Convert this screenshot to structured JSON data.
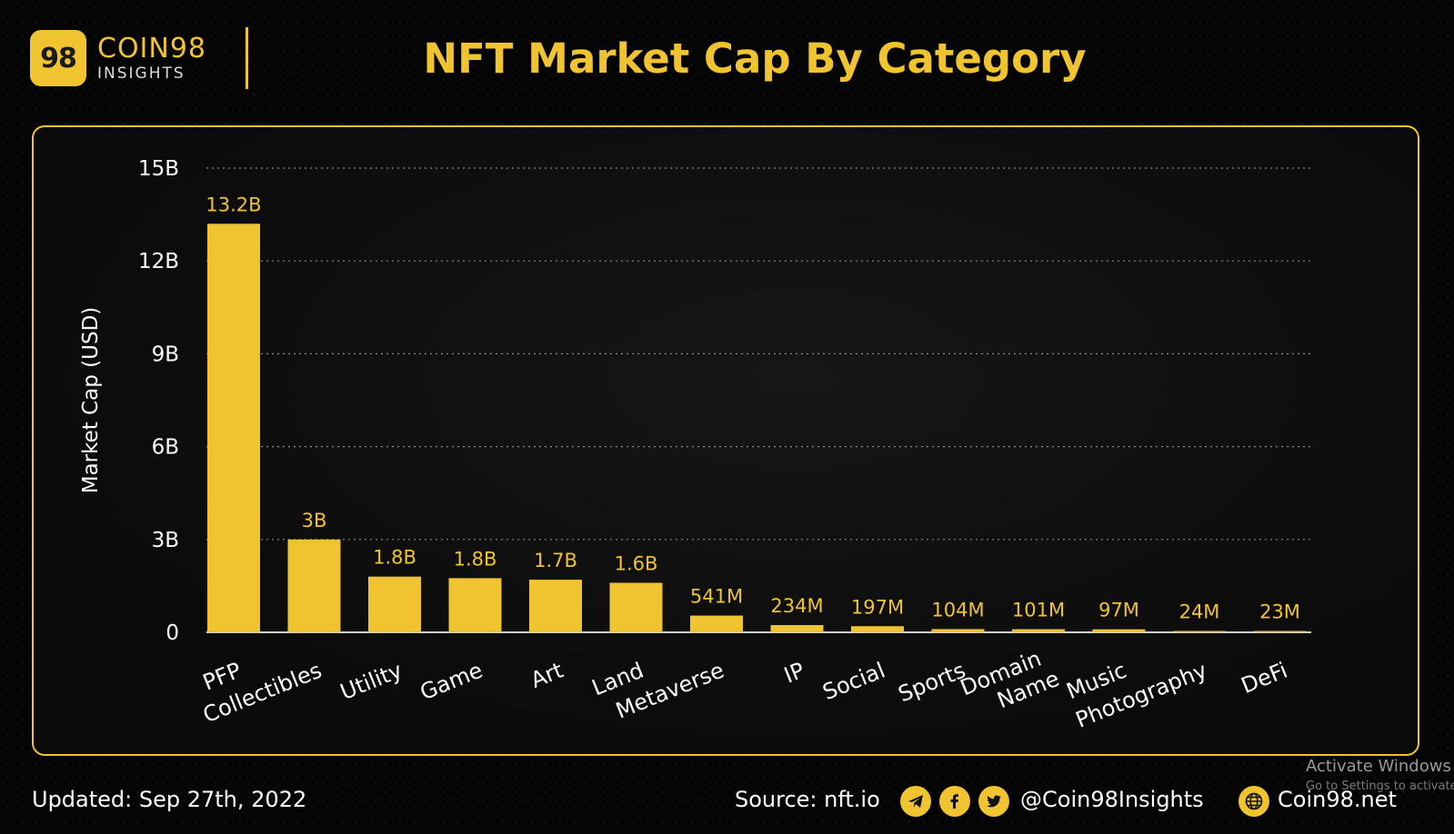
{
  "brand": {
    "badge": "98",
    "name": "COIN98",
    "sub": "INSIGHTS"
  },
  "title": "NFT Market Cap By Category",
  "footer": {
    "updated": "Updated: Sep 27th, 2022",
    "source": "Source: nft.io",
    "handle": "@Coin98Insights",
    "site": "Coin98.net",
    "icons": [
      "telegram-icon",
      "facebook-icon",
      "twitter-icon",
      "globe-icon"
    ]
  },
  "watermark": {
    "line1": "Activate Windows",
    "line2": "Go to Settings to activate"
  },
  "colors": {
    "accent": "#f0c330",
    "background": "#050505"
  },
  "chart_data": {
    "type": "bar",
    "ylabel": "Market Cap (USD)",
    "ylim": [
      0,
      15
    ],
    "yticks": [
      {
        "value": 0,
        "label": "0"
      },
      {
        "value": 3,
        "label": "3B"
      },
      {
        "value": 6,
        "label": "6B"
      },
      {
        "value": 9,
        "label": "9B"
      },
      {
        "value": 12,
        "label": "12B"
      },
      {
        "value": 15,
        "label": "15B"
      }
    ],
    "grid": true,
    "categories": [
      "PFP",
      "Collectibles",
      "Utility",
      "Game",
      "Art",
      "Land",
      "Metaverse",
      "IP",
      "Social",
      "Sports",
      "Domain Name",
      "Music",
      "Photography",
      "DeFi"
    ],
    "values": [
      13.2,
      3.0,
      1.8,
      1.75,
      1.7,
      1.6,
      0.541,
      0.234,
      0.197,
      0.104,
      0.101,
      0.097,
      0.024,
      0.023
    ],
    "value_labels": [
      "13.2B",
      "3B",
      "1.8B",
      "1.8B",
      "1.7B",
      "1.6B",
      "541M",
      "234M",
      "197M",
      "104M",
      "101M",
      "97M",
      "24M",
      "23M"
    ]
  }
}
